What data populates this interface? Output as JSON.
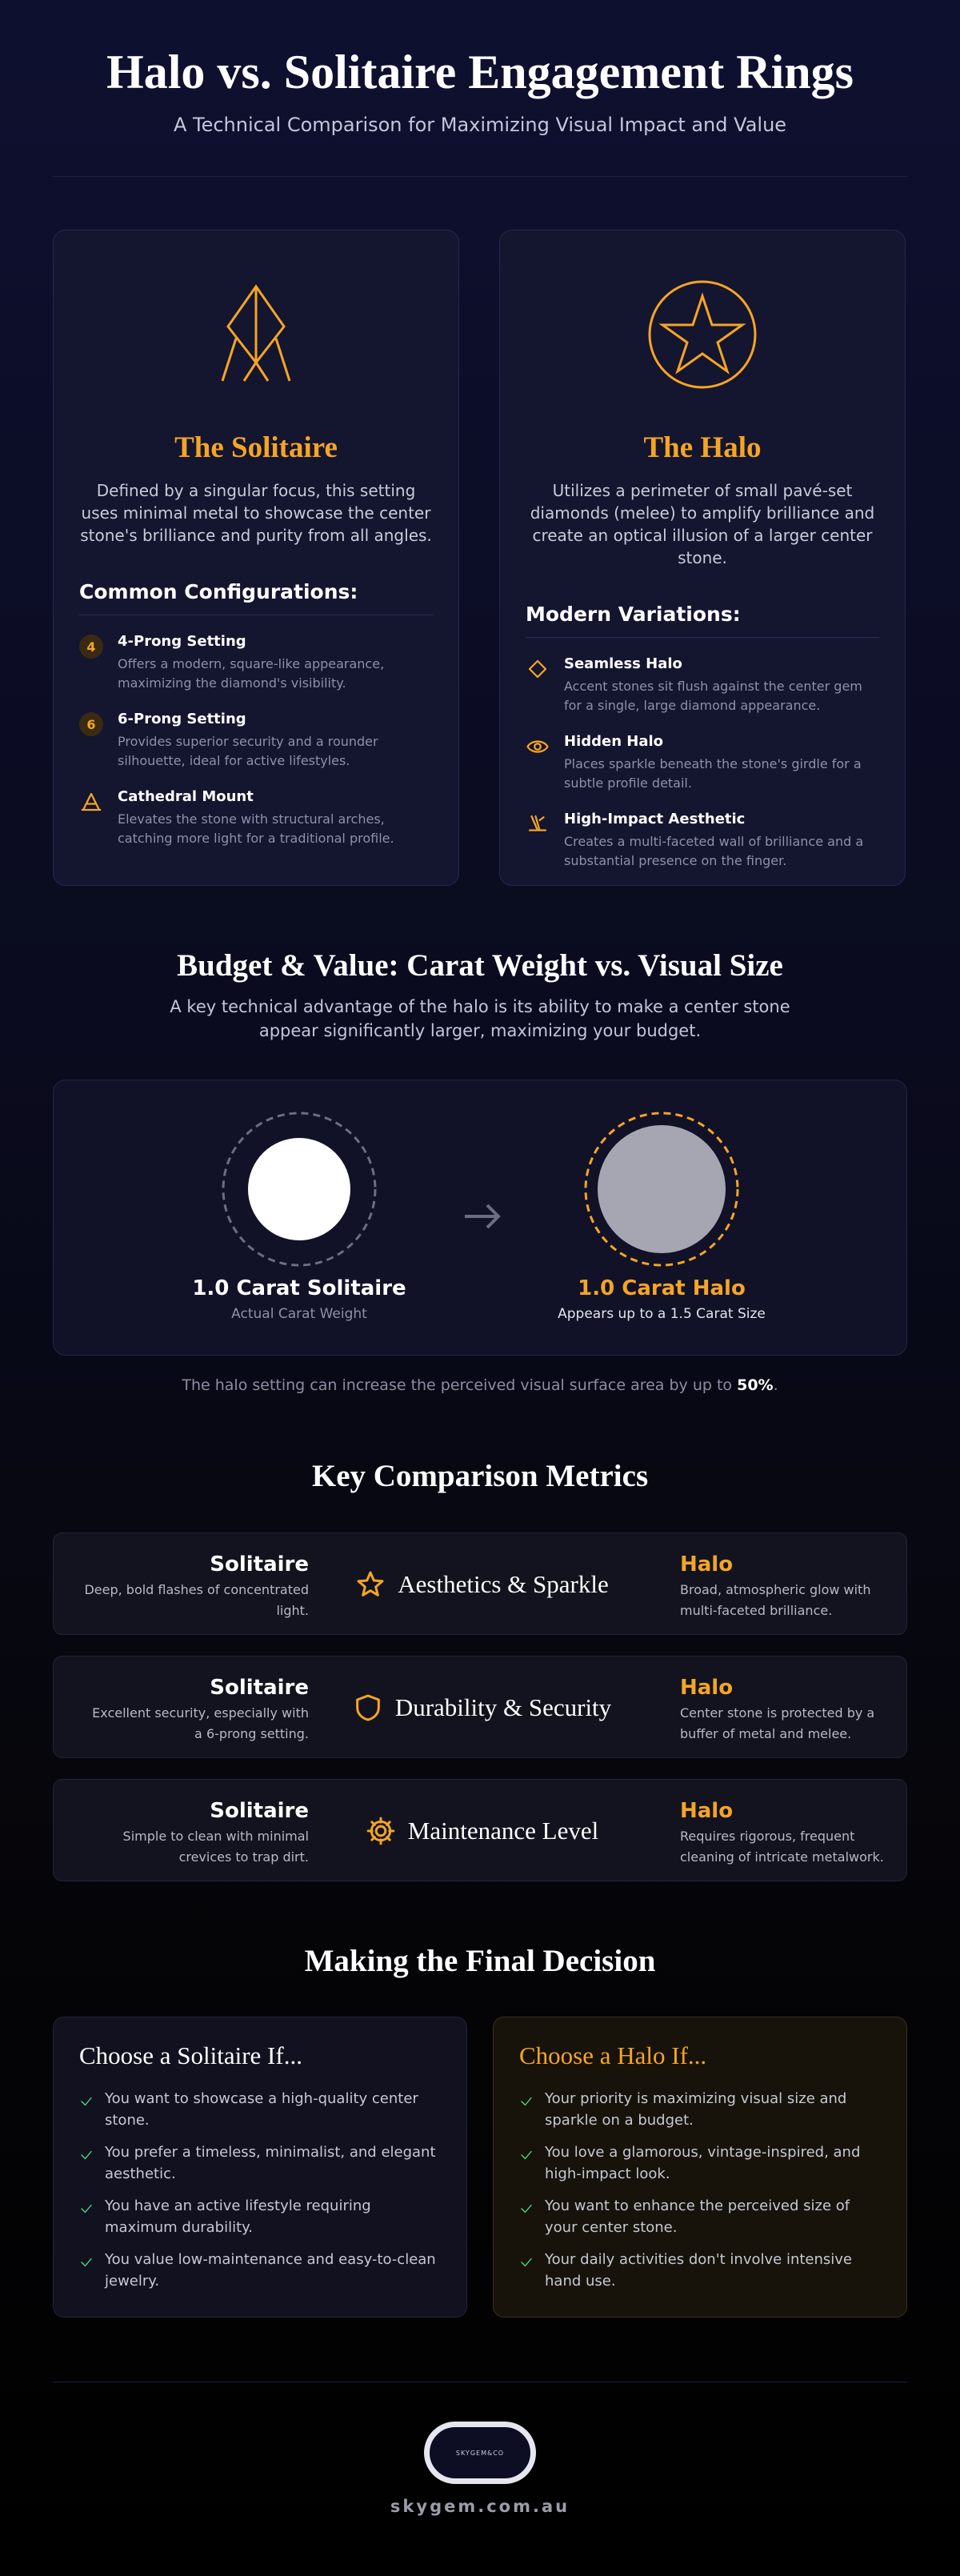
{
  "header": {
    "title": "Halo vs. Solitaire Engagement Rings",
    "subtitle": "A Technical Comparison for Maximizing Visual Impact and Value"
  },
  "settings": [
    {
      "title": "The Solitaire",
      "description": "Defined by a singular focus, this setting uses minimal metal to showcase the center stone's brilliance and purity from all angles.",
      "list_title": "Common Configurations:",
      "items": [
        {
          "badge": "4",
          "title": "4-Prong Setting",
          "text": "Offers a modern, square-like appearance, maximizing the diamond's visibility."
        },
        {
          "badge": "6",
          "title": "6-Prong Setting",
          "text": "Provides superior security and a rounder silhouette, ideal for active lifestyles."
        },
        {
          "title": "Cathedral Mount",
          "text": "Elevates the stone with structural arches, catching more light for a traditional profile."
        }
      ]
    },
    {
      "title": "The Halo",
      "description": "Utilizes a perimeter of small pavé-set diamonds (melee) to amplify brilliance and create an optical illusion of a larger center stone.",
      "list_title": "Modern Variations:",
      "items": [
        {
          "title": "Seamless Halo",
          "text": "Accent stones sit flush against the center gem for a single, large diamond appearance."
        },
        {
          "title": "Hidden Halo",
          "text": "Places sparkle beneath the stone's girdle for a subtle profile detail."
        },
        {
          "title": "High-Impact Aesthetic",
          "text": "Creates a multi-faceted wall of brilliance and a substantial presence on the finger."
        }
      ]
    }
  ],
  "budget": {
    "title": "Budget & Value: Carat Weight vs. Visual Size",
    "description": "A key technical advantage of the halo is its ability to make a center stone appear significantly larger, maximizing your budget.",
    "solitaire": {
      "label": "1.0 Carat Solitaire",
      "sublabel": "Actual Carat Weight"
    },
    "halo": {
      "label": "1.0 Carat Halo",
      "sublabel": "Appears up to a 1.5 Carat Size"
    },
    "note": "The halo setting can increase the perceived visual surface area by up to",
    "note_value": "50%",
    "note_end": "."
  },
  "metrics": {
    "title": "Key Comparison Metrics",
    "rows": [
      {
        "left_title": "Solitaire",
        "left_text": "Deep, bold flashes of concentrated light.",
        "name": "Aesthetics & Sparkle",
        "right_title": "Halo",
        "right_text": "Broad, atmospheric glow with multi-faceted brilliance."
      },
      {
        "left_title": "Solitaire",
        "left_text": "Excellent security, especially with a 6-prong setting.",
        "name": "Durability & Security",
        "right_title": "Halo",
        "right_text": "Center stone is protected by a buffer of metal and melee."
      },
      {
        "left_title": "Solitaire",
        "left_text": "Simple to clean with minimal crevices to trap dirt.",
        "name": "Maintenance Level",
        "right_title": "Halo",
        "right_text": "Requires rigorous, frequent cleaning of intricate metalwork."
      }
    ]
  },
  "decision": {
    "title": "Making the Final Decision",
    "cards": [
      {
        "title": "Choose a Solitaire If...",
        "items": [
          "You want to showcase a high-quality center stone.",
          "You prefer a timeless, minimalist, and elegant aesthetic.",
          "You have an active lifestyle requiring maximum durability.",
          "You value low-maintenance and easy-to-clean jewelry."
        ]
      },
      {
        "title": "Choose a Halo If...",
        "items": [
          "Your priority is maximizing visual size and sparkle on a budget.",
          "You love a glamorous, vintage-inspired, and high-impact look.",
          "You want to enhance the perceived size of your center stone.",
          "Your daily activities don't involve intensive hand use."
        ]
      }
    ]
  },
  "footer": {
    "logo": "SKYGEM&CO",
    "url": "skygem.com.au"
  }
}
